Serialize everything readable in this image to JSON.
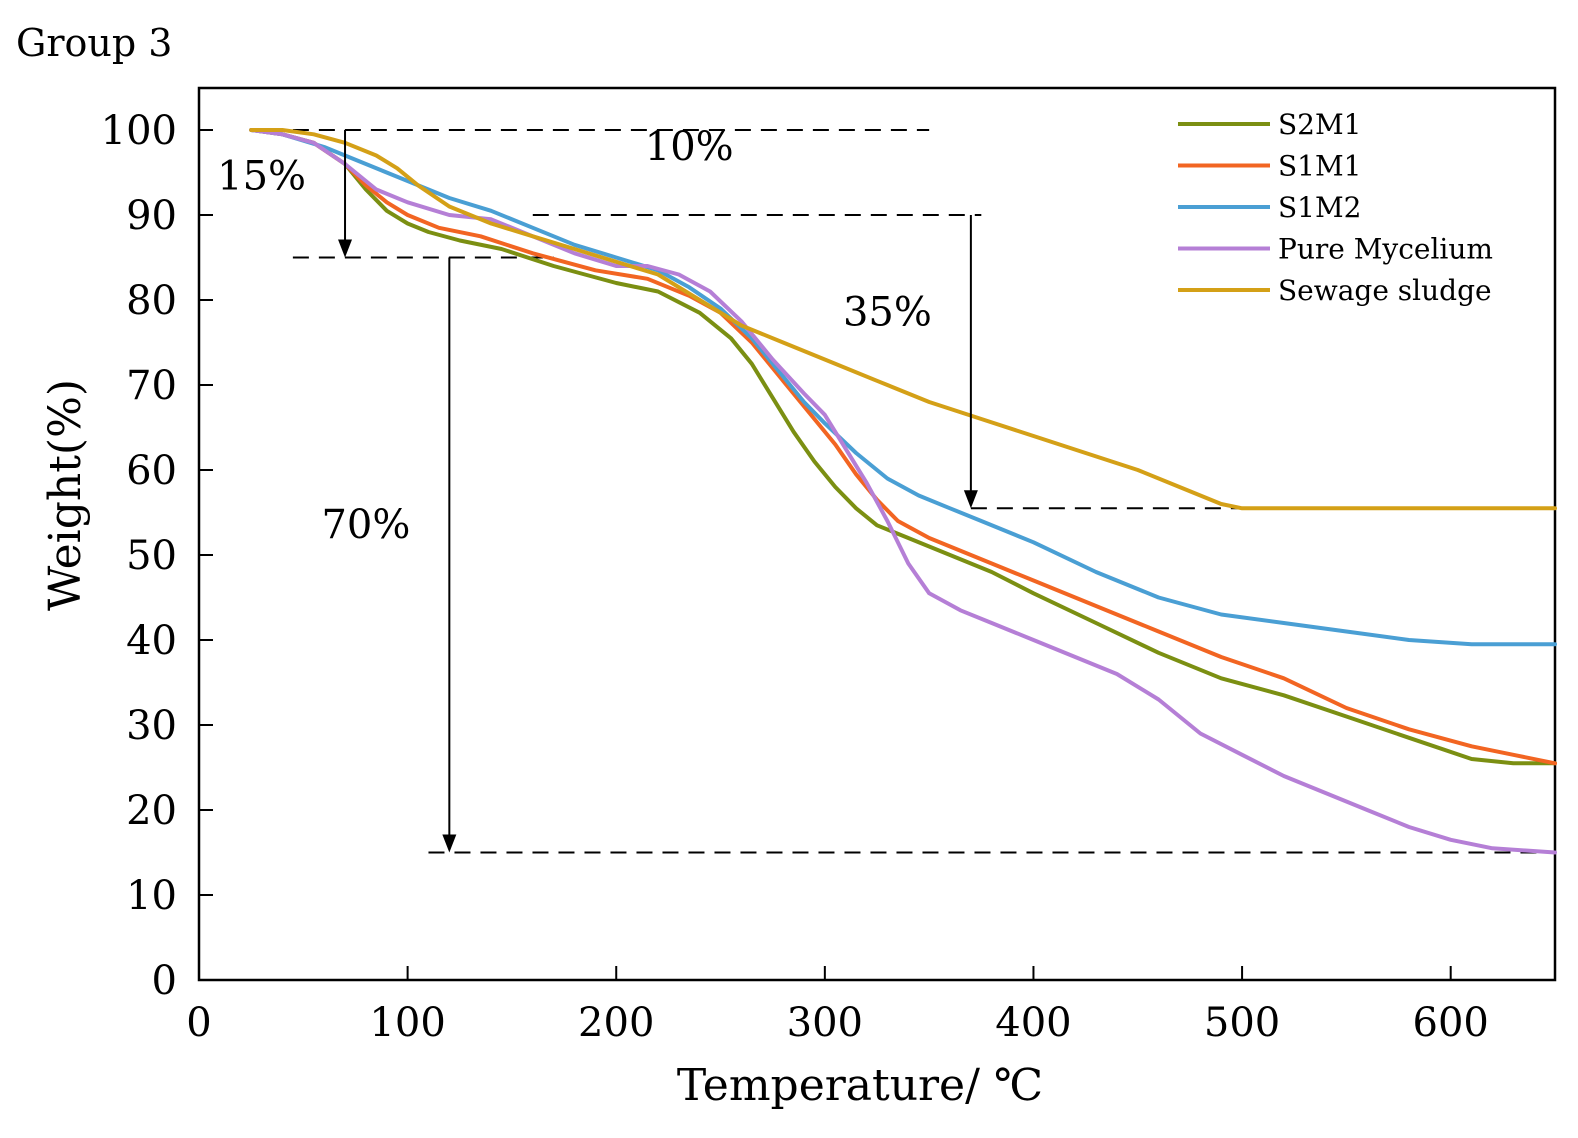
{
  "figure_title": "Group 3",
  "chart_data": {
    "type": "line",
    "title": "Group 3",
    "xlabel": "Temperature/ ℃",
    "ylabel": "Weight(%)",
    "xlim": [
      0,
      650
    ],
    "ylim": [
      0,
      105
    ],
    "xticks": [
      0,
      100,
      200,
      300,
      400,
      500,
      600
    ],
    "yticks": [
      0,
      10,
      20,
      30,
      40,
      50,
      60,
      70,
      80,
      90,
      100
    ],
    "grid": false,
    "legend_position": "top-right",
    "series": [
      {
        "name": "S2M1",
        "color": "#7b8f12",
        "points": [
          [
            25,
            100
          ],
          [
            40,
            99.5
          ],
          [
            55,
            98.5
          ],
          [
            70,
            96
          ],
          [
            80,
            93
          ],
          [
            90,
            90.5
          ],
          [
            100,
            89
          ],
          [
            110,
            88
          ],
          [
            125,
            87
          ],
          [
            145,
            86
          ],
          [
            170,
            84
          ],
          [
            200,
            82
          ],
          [
            220,
            81
          ],
          [
            240,
            78.5
          ],
          [
            255,
            75.5
          ],
          [
            265,
            72.5
          ],
          [
            275,
            68.5
          ],
          [
            285,
            64.5
          ],
          [
            295,
            61
          ],
          [
            305,
            58
          ],
          [
            315,
            55.5
          ],
          [
            325,
            53.5
          ],
          [
            340,
            52
          ],
          [
            360,
            50
          ],
          [
            380,
            48
          ],
          [
            400,
            45.5
          ],
          [
            430,
            42
          ],
          [
            460,
            38.5
          ],
          [
            490,
            35.5
          ],
          [
            520,
            33.5
          ],
          [
            550,
            31
          ],
          [
            580,
            28.5
          ],
          [
            610,
            26
          ],
          [
            630,
            25.5
          ],
          [
            650,
            25.5
          ]
        ]
      },
      {
        "name": "S1M1",
        "color": "#f26522",
        "points": [
          [
            25,
            100
          ],
          [
            40,
            99.5
          ],
          [
            55,
            98.5
          ],
          [
            70,
            96
          ],
          [
            80,
            93.5
          ],
          [
            90,
            91.5
          ],
          [
            100,
            90
          ],
          [
            115,
            88.5
          ],
          [
            135,
            87.5
          ],
          [
            160,
            85.5
          ],
          [
            190,
            83.5
          ],
          [
            215,
            82.5
          ],
          [
            235,
            80.5
          ],
          [
            250,
            78.5
          ],
          [
            265,
            75
          ],
          [
            280,
            70.5
          ],
          [
            295,
            66
          ],
          [
            305,
            63
          ],
          [
            315,
            59.5
          ],
          [
            325,
            56.5
          ],
          [
            335,
            54
          ],
          [
            350,
            52
          ],
          [
            370,
            50
          ],
          [
            400,
            47
          ],
          [
            430,
            44
          ],
          [
            460,
            41
          ],
          [
            490,
            38
          ],
          [
            520,
            35.5
          ],
          [
            550,
            32
          ],
          [
            580,
            29.5
          ],
          [
            610,
            27.5
          ],
          [
            630,
            26.5
          ],
          [
            650,
            25.5
          ]
        ]
      },
      {
        "name": "S1M2",
        "color": "#4a9fd4",
        "points": [
          [
            25,
            100
          ],
          [
            40,
            99.5
          ],
          [
            60,
            98
          ],
          [
            80,
            96
          ],
          [
            100,
            94
          ],
          [
            120,
            92
          ],
          [
            140,
            90.5
          ],
          [
            160,
            88.5
          ],
          [
            180,
            86.5
          ],
          [
            200,
            85
          ],
          [
            220,
            83.5
          ],
          [
            235,
            81.5
          ],
          [
            250,
            79
          ],
          [
            265,
            75.5
          ],
          [
            280,
            71
          ],
          [
            290,
            68
          ],
          [
            300,
            65.5
          ],
          [
            315,
            62
          ],
          [
            330,
            59
          ],
          [
            345,
            57
          ],
          [
            360,
            55.5
          ],
          [
            375,
            54
          ],
          [
            400,
            51.5
          ],
          [
            430,
            48
          ],
          [
            460,
            45
          ],
          [
            490,
            43
          ],
          [
            520,
            42
          ],
          [
            550,
            41
          ],
          [
            580,
            40
          ],
          [
            610,
            39.5
          ],
          [
            630,
            39.5
          ],
          [
            650,
            39.5
          ]
        ]
      },
      {
        "name": "Pure Mycelium",
        "color": "#b57fd6",
        "points": [
          [
            25,
            100
          ],
          [
            40,
            99.5
          ],
          [
            55,
            98.5
          ],
          [
            70,
            96
          ],
          [
            85,
            93
          ],
          [
            100,
            91.5
          ],
          [
            120,
            90
          ],
          [
            140,
            89.5
          ],
          [
            160,
            87.5
          ],
          [
            180,
            85.5
          ],
          [
            200,
            84
          ],
          [
            215,
            84
          ],
          [
            230,
            83
          ],
          [
            245,
            81
          ],
          [
            260,
            77.5
          ],
          [
            275,
            73
          ],
          [
            290,
            69
          ],
          [
            300,
            66.5
          ],
          [
            310,
            62.5
          ],
          [
            320,
            58.5
          ],
          [
            330,
            54
          ],
          [
            340,
            49
          ],
          [
            350,
            45.5
          ],
          [
            365,
            43.5
          ],
          [
            380,
            42
          ],
          [
            400,
            40
          ],
          [
            420,
            38
          ],
          [
            440,
            36
          ],
          [
            460,
            33
          ],
          [
            480,
            29
          ],
          [
            500,
            26.5
          ],
          [
            520,
            24
          ],
          [
            540,
            22
          ],
          [
            560,
            20
          ],
          [
            580,
            18
          ],
          [
            600,
            16.5
          ],
          [
            620,
            15.5
          ],
          [
            650,
            15
          ]
        ]
      },
      {
        "name": "Sewage sludge",
        "color": "#d4a017",
        "points": [
          [
            25,
            100
          ],
          [
            40,
            100
          ],
          [
            55,
            99.5
          ],
          [
            70,
            98.5
          ],
          [
            85,
            97
          ],
          [
            95,
            95.5
          ],
          [
            105,
            93.5
          ],
          [
            120,
            91
          ],
          [
            140,
            89
          ],
          [
            160,
            87.5
          ],
          [
            180,
            86
          ],
          [
            200,
            84.5
          ],
          [
            220,
            83
          ],
          [
            240,
            80
          ],
          [
            260,
            77
          ],
          [
            280,
            75
          ],
          [
            300,
            73
          ],
          [
            325,
            70.5
          ],
          [
            350,
            68
          ],
          [
            375,
            66
          ],
          [
            400,
            64
          ],
          [
            425,
            62
          ],
          [
            450,
            60
          ],
          [
            470,
            58
          ],
          [
            490,
            56
          ],
          [
            500,
            55.5
          ],
          [
            530,
            55.5
          ],
          [
            560,
            55.5
          ],
          [
            600,
            55.5
          ],
          [
            650,
            55.5
          ]
        ]
      }
    ],
    "annotations": [
      {
        "label": "15%",
        "arrow_x": 70,
        "from": 100,
        "to": 85,
        "label_at": [
          30,
          93
        ]
      },
      {
        "label": "10%",
        "label_at": [
          235,
          96.5
        ]
      },
      {
        "label": "35%",
        "arrow_x": 370,
        "from": 90,
        "to": 55.5,
        "label_at": [
          330,
          77
        ]
      },
      {
        "label": "70%",
        "arrow_x": 120,
        "from": 85,
        "to": 15,
        "label_at": [
          80,
          52
        ]
      }
    ],
    "reference_lines": [
      {
        "y": 100,
        "x_from": 45,
        "x_to": 350
      },
      {
        "y": 90,
        "x_from": 160,
        "x_to": 375
      },
      {
        "y": 85,
        "x_from": 45,
        "x_to": 170
      },
      {
        "y": 55.5,
        "x_from": 370,
        "x_to": 525
      },
      {
        "y": 15,
        "x_from": 110,
        "x_to": 650
      }
    ]
  }
}
